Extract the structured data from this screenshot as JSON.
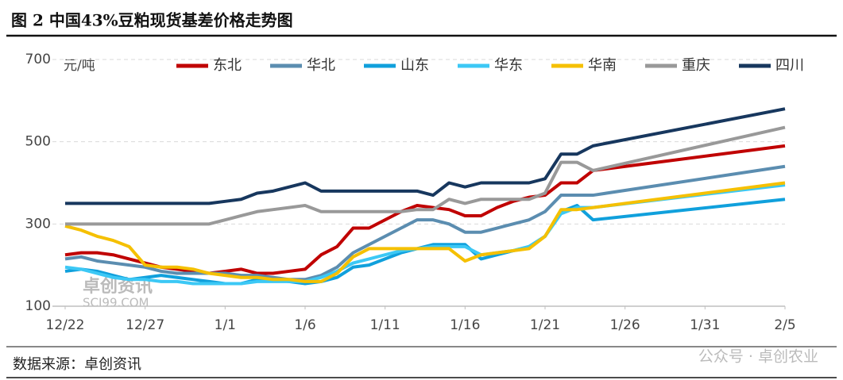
{
  "chart_data": {
    "type": "line",
    "title": "图 2 中国43%豆粕现货基差价格走势图",
    "y_axis_label": "元/吨",
    "source": "数据来源：卓创资讯",
    "watermark_chart": [
      "卓创资讯",
      "SCI99.COM"
    ],
    "watermark_footer": "公众号 · 卓创农业",
    "x": [
      0,
      1,
      2,
      3,
      4,
      5,
      6,
      7,
      8,
      9,
      10,
      11,
      12,
      13,
      14,
      15,
      16,
      17,
      18,
      19,
      20,
      21,
      22,
      23,
      24,
      25,
      26,
      27,
      28,
      29,
      30,
      31,
      32,
      33,
      45
    ],
    "xlim": [
      0,
      45
    ],
    "xticks": [
      {
        "value": 0,
        "label": "12/22"
      },
      {
        "value": 5,
        "label": "12/27"
      },
      {
        "value": 10,
        "label": "1/1"
      },
      {
        "value": 15,
        "label": "1/6"
      },
      {
        "value": 20,
        "label": "1/11"
      },
      {
        "value": 25,
        "label": "1/16"
      },
      {
        "value": 30,
        "label": "1/21"
      },
      {
        "value": 35,
        "label": "1/26"
      },
      {
        "value": 40,
        "label": "1/31"
      },
      {
        "value": 45,
        "label": "2/5"
      }
    ],
    "ylim": [
      100,
      700
    ],
    "yticks": [
      100,
      300,
      500,
      700
    ],
    "grid": true,
    "series": [
      {
        "name": "东北",
        "color": "#c00000",
        "values": [
          225,
          230,
          230,
          225,
          215,
          205,
          195,
          190,
          185,
          180,
          185,
          190,
          180,
          180,
          185,
          190,
          225,
          245,
          290,
          290,
          310,
          330,
          345,
          340,
          335,
          320,
          320,
          340,
          355,
          365,
          370,
          400,
          400,
          430,
          490
        ]
      },
      {
        "name": "华北",
        "color": "#5b8db0",
        "values": [
          215,
          220,
          210,
          205,
          200,
          195,
          185,
          180,
          180,
          180,
          180,
          175,
          175,
          170,
          165,
          165,
          175,
          195,
          230,
          250,
          270,
          290,
          310,
          310,
          300,
          280,
          280,
          290,
          300,
          310,
          330,
          370,
          370,
          370,
          440
        ]
      },
      {
        "name": "山东",
        "color": "#10a0dc",
        "values": [
          185,
          190,
          185,
          175,
          165,
          170,
          175,
          170,
          165,
          160,
          155,
          155,
          165,
          165,
          160,
          155,
          160,
          170,
          195,
          200,
          215,
          230,
          240,
          250,
          250,
          250,
          215,
          225,
          235,
          245,
          270,
          330,
          345,
          310,
          360
        ]
      },
      {
        "name": "华东",
        "color": "#3cc8f5",
        "values": [
          195,
          190,
          180,
          170,
          165,
          165,
          160,
          160,
          155,
          155,
          155,
          155,
          160,
          160,
          160,
          160,
          170,
          185,
          205,
          215,
          225,
          235,
          240,
          245,
          245,
          245,
          225,
          230,
          235,
          245,
          270,
          325,
          340,
          340,
          395
        ]
      },
      {
        "name": "华南",
        "color": "#f5c000",
        "values": [
          295,
          285,
          270,
          260,
          245,
          200,
          195,
          195,
          190,
          180,
          175,
          170,
          170,
          165,
          165,
          160,
          160,
          180,
          220,
          240,
          240,
          240,
          240,
          240,
          240,
          210,
          225,
          230,
          235,
          240,
          270,
          335,
          335,
          340,
          400
        ]
      },
      {
        "name": "重庆",
        "color": "#999999",
        "values": [
          300,
          300,
          300,
          300,
          300,
          300,
          300,
          300,
          300,
          300,
          310,
          320,
          330,
          335,
          340,
          345,
          330,
          330,
          330,
          330,
          330,
          330,
          335,
          335,
          360,
          350,
          360,
          360,
          360,
          360,
          375,
          450,
          450,
          430,
          535
        ]
      },
      {
        "name": "四川",
        "color": "#17375e",
        "values": [
          350,
          350,
          350,
          350,
          350,
          350,
          350,
          350,
          350,
          350,
          355,
          360,
          375,
          380,
          390,
          400,
          380,
          380,
          380,
          380,
          380,
          380,
          380,
          370,
          400,
          390,
          400,
          400,
          400,
          400,
          410,
          470,
          470,
          490,
          580
        ]
      }
    ]
  }
}
